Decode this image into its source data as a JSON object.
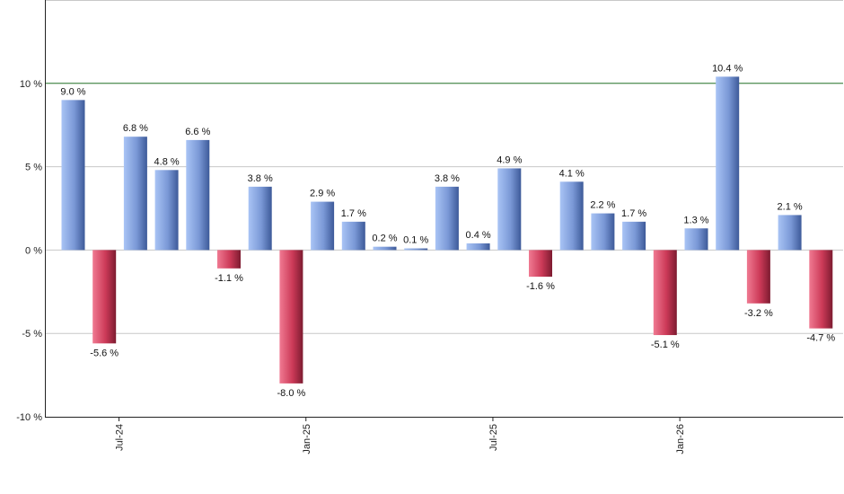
{
  "chart_data": {
    "type": "bar",
    "title": "",
    "xlabel": "",
    "ylabel": "",
    "ylim": [
      -10,
      15
    ],
    "y_ticks": [
      {
        "value": 10,
        "label": "10 %"
      },
      {
        "value": 5,
        "label": "5 %"
      },
      {
        "value": 0,
        "label": "0 %"
      },
      {
        "value": -5,
        "label": "-5 %"
      },
      {
        "value": -10,
        "label": "-10 %"
      }
    ],
    "x_ticks": [
      {
        "after_index": 1,
        "label": "Jul-24"
      },
      {
        "after_index": 7,
        "label": "Jan-25"
      },
      {
        "after_index": 13,
        "label": "Jul-25"
      },
      {
        "after_index": 19,
        "label": "Jan-26"
      }
    ],
    "reference_line": {
      "value": 10,
      "color": "#2e7d32"
    },
    "colors": {
      "positive": "#7f9fe0",
      "negative": "#d0405c",
      "grid": "#c8c8c8"
    },
    "grid": true,
    "values": [
      9.0,
      -5.6,
      6.8,
      4.8,
      6.6,
      -1.1,
      3.8,
      -8.0,
      2.9,
      1.7,
      0.2,
      0.1,
      3.8,
      0.4,
      4.9,
      -1.6,
      4.1,
      2.2,
      1.7,
      -5.1,
      1.3,
      10.4,
      -3.2,
      2.1,
      -4.7
    ],
    "labels": [
      "9.0 %",
      "-5.6 %",
      "6.8 %",
      "4.8 %",
      "6.6 %",
      "-1.1 %",
      "3.8 %",
      "-8.0 %",
      "2.9 %",
      "1.7 %",
      "0.2 %",
      "0.1 %",
      "3.8 %",
      "0.4 %",
      "4.9 %",
      "-1.6 %",
      "4.1 %",
      "2.2 %",
      "1.7 %",
      "-5.1 %",
      "1.3 %",
      "10.4 %",
      "-3.2 %",
      "2.1 %",
      "-4.7 %"
    ]
  }
}
